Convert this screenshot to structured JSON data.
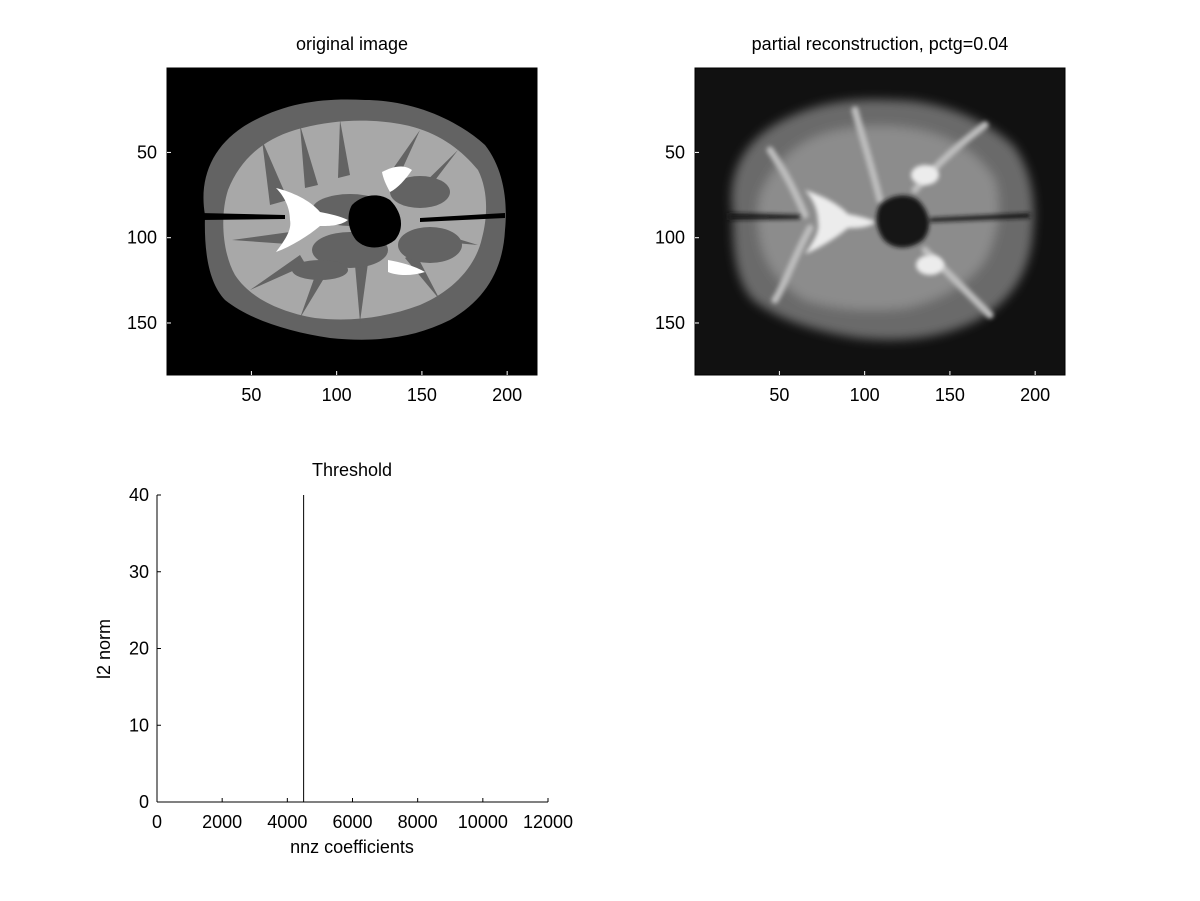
{
  "figure": {
    "background": "#ffffff",
    "axis_color": "#000000"
  },
  "chart_data": [
    {
      "type": "heatmap",
      "title": "original image",
      "xticks": [
        50,
        100,
        150,
        200
      ],
      "yticks": [
        50,
        100,
        150
      ],
      "xlim": [
        0.5,
        217.5
      ],
      "ylim": [
        0.5,
        180.5
      ],
      "colormap": "gray",
      "palette": {
        "background": "#000000",
        "gray_matter": "#636363",
        "white_matter": "#a8a8a8",
        "csf": "#ffffff"
      }
    },
    {
      "type": "heatmap",
      "title": "partial reconstruction, pctg=0.04",
      "xticks": [
        50,
        100,
        150,
        200
      ],
      "yticks": [
        50,
        100,
        150
      ],
      "xlim": [
        0.5,
        217.5
      ],
      "ylim": [
        0.5,
        180.5
      ],
      "colormap": "gray",
      "palette": {
        "background": "#111111",
        "blur": "#7a7a7a",
        "bright": "#e8e8e8"
      }
    },
    {
      "type": "line",
      "title": "Threshold",
      "xlabel": "nnz coefficients",
      "ylabel": "l2 norm",
      "xlim": [
        0,
        12000
      ],
      "ylim": [
        0,
        40
      ],
      "xticks": [
        0,
        2000,
        4000,
        6000,
        8000,
        10000,
        12000
      ],
      "yticks": [
        0,
        10,
        20,
        30,
        40
      ],
      "series": [
        {
          "x": [
            4500,
            4500
          ],
          "y": [
            0,
            40
          ],
          "color": "#000000"
        }
      ]
    }
  ]
}
